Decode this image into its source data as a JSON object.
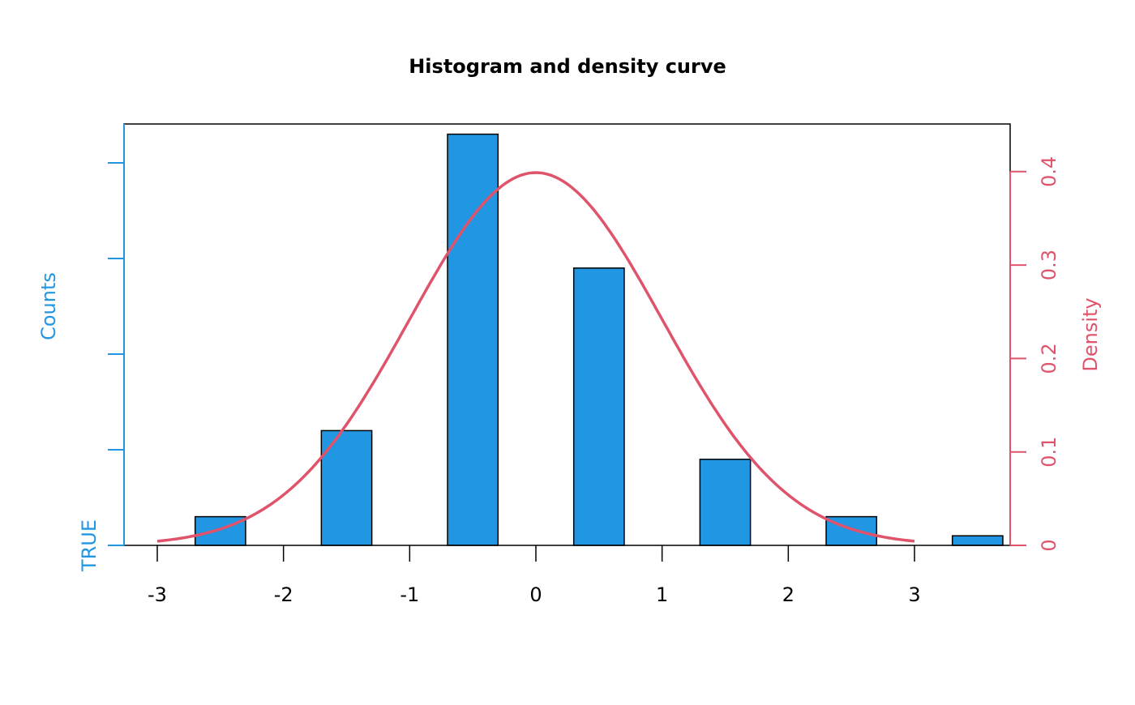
{
  "chart_data": {
    "type": "bar",
    "title": "Histogram and density curve",
    "xlabel": "",
    "ylabel_left": "Counts",
    "ylabel_right": "Density",
    "left_tick_labels": [
      "TRUE"
    ],
    "xlim": [
      -3.26,
      3.76
    ],
    "x_ticks": [
      -3,
      -2,
      -1,
      0,
      1,
      2,
      3
    ],
    "x_tick_labels": [
      "-3",
      "-2",
      "-1",
      "0",
      "1",
      "2",
      "3"
    ],
    "bins": {
      "centers": [
        -2.5,
        -1.5,
        -0.5,
        0.5,
        1.5,
        2.5,
        3.5
      ],
      "width": 0.4,
      "counts": [
        3,
        12,
        43,
        29,
        9,
        3,
        1
      ]
    },
    "left_axis": {
      "ticks": [
        0,
        10,
        20,
        30,
        40
      ],
      "range": [
        0,
        44
      ]
    },
    "right_axis": {
      "ticks": [
        0,
        0.1,
        0.2,
        0.3,
        0.4
      ],
      "tick_labels": [
        "0",
        "0.1",
        "0.2",
        "0.3",
        "0.4"
      ],
      "range": [
        0,
        0.45
      ]
    },
    "density_curve": {
      "distribution": "normal",
      "mean": 0,
      "sd": 1,
      "x_range": [
        -3,
        3
      ]
    },
    "colors": {
      "bars": "#2196e3",
      "curve": "#df536b",
      "left_axis": "#2196e3",
      "right_axis": "#df536b"
    }
  }
}
